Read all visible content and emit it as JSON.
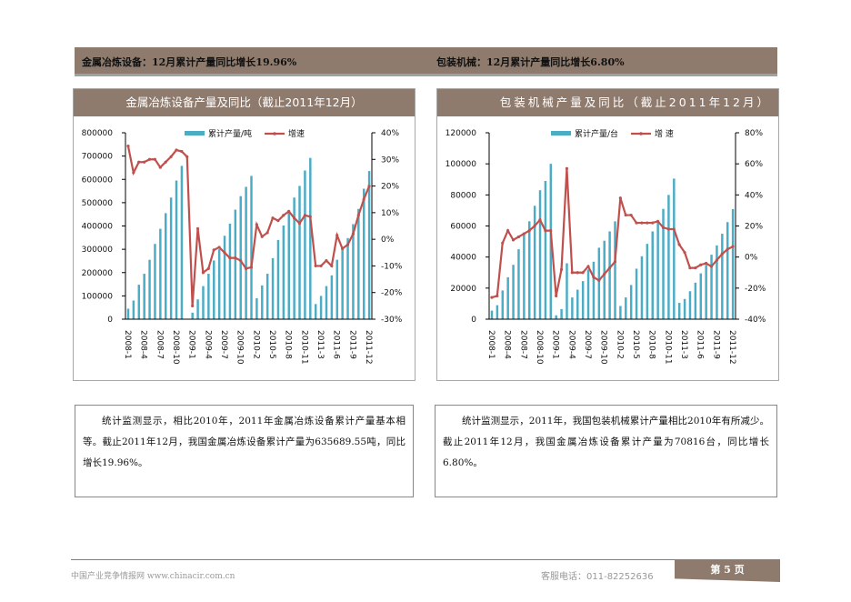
{
  "header": {
    "left": "金属冶炼设备：12月累计产量同比增长19.96%",
    "right": "包装机械：12月累计产量同比增长6.80%"
  },
  "colors": {
    "brand": "#8f7b6d",
    "bar": "#4bacc6",
    "line": "#c0504d"
  },
  "chart_data": [
    {
      "type": "bar+line",
      "title": "金属冶炼设备产量及同比（截止2011年12月）",
      "legend": [
        "累计产量/吨",
        "增速"
      ],
      "legend_position": "top",
      "categories": [
        "2008-1",
        "2008-2",
        "2008-3",
        "2008-4",
        "2008-5",
        "2008-6",
        "2008-7",
        "2008-8",
        "2008-9",
        "2008-10",
        "2008-11",
        "2008-12",
        "2009-1",
        "2009-2",
        "2009-3",
        "2009-4",
        "2009-5",
        "2009-6",
        "2009-7",
        "2009-8",
        "2009-9",
        "2009-10",
        "2009-11",
        "2009-12",
        "2010-2",
        "2010-3",
        "2010-4",
        "2010-5",
        "2010-6",
        "2010-7",
        "2010-8",
        "2010-9",
        "2010-10",
        "2010-11",
        "2010-12",
        "2011-2",
        "2011-3",
        "2011-4",
        "2011-5",
        "2011-6",
        "2011-7",
        "2011-8",
        "2011-9",
        "2011-10",
        "2011-11",
        "2011-12"
      ],
      "tick_labels": [
        "2008-1",
        "2008-4",
        "2008-7",
        "2008-10",
        "2009-1",
        "2009-4",
        "2009-7",
        "2009-10",
        "2010-2",
        "2010-5",
        "2010-8",
        "2010-11",
        "2011-3",
        "2011-6",
        "2011-9",
        "2011-12"
      ],
      "bars": [
        45000,
        80000,
        148000,
        195000,
        255000,
        323000,
        388000,
        455000,
        522000,
        595000,
        658000,
        null,
        28000,
        85000,
        142000,
        195000,
        252000,
        300000,
        358000,
        410000,
        470000,
        528000,
        568000,
        615000,
        90000,
        145000,
        195000,
        262000,
        340000,
        402000,
        460000,
        522000,
        572000,
        638000,
        692000,
        65000,
        100000,
        142000,
        188000,
        255000,
        300000,
        348000,
        408000,
        473000,
        560000,
        635690
      ],
      "growth": [
        35,
        25,
        29,
        29,
        30,
        30,
        27,
        29,
        31,
        33.5,
        33,
        31,
        -25,
        4,
        -12.5,
        -11,
        -4,
        -3,
        -5,
        -7,
        -7,
        -8,
        -11,
        -10.5,
        5.5,
        1,
        2.5,
        8,
        7,
        9,
        10.5,
        8,
        6,
        9,
        8.5,
        -10,
        -10,
        -8,
        -10,
        1.5,
        -3.5,
        -2,
        2,
        9,
        15,
        19.96
      ],
      "y_left": {
        "min": 0,
        "max": 800000,
        "step": 100000,
        "ticks": [
          "0",
          "100000",
          "200000",
          "300000",
          "400000",
          "500000",
          "600000",
          "700000",
          "800000"
        ]
      },
      "y_right": {
        "min": -30,
        "max": 40,
        "step": 10,
        "ticks": [
          "-30%",
          "-20%",
          "-10%",
          "0%",
          "10%",
          "20%",
          "30%",
          "40%"
        ]
      }
    },
    {
      "type": "bar+line",
      "title": "包装机械产量及同比（截止2011年12月）",
      "legend": [
        "累计产量/台",
        "增 速"
      ],
      "legend_position": "top",
      "categories": [
        "2008-1",
        "2008-2",
        "2008-3",
        "2008-4",
        "2008-5",
        "2008-6",
        "2008-7",
        "2008-8",
        "2008-9",
        "2008-10",
        "2008-11",
        "2008-12",
        "2009-1",
        "2009-2",
        "2009-3",
        "2009-4",
        "2009-5",
        "2009-6",
        "2009-7",
        "2009-8",
        "2009-9",
        "2009-10",
        "2009-11",
        "2009-12",
        "2010-2",
        "2010-3",
        "2010-4",
        "2010-5",
        "2010-6",
        "2010-7",
        "2010-8",
        "2010-9",
        "2010-10",
        "2010-11",
        "2010-12",
        "2011-2",
        "2011-3",
        "2011-4",
        "2011-5",
        "2011-6",
        "2011-7",
        "2011-8",
        "2011-9",
        "2011-10",
        "2011-11",
        "2011-12"
      ],
      "tick_labels": [
        "2008-1",
        "2008-4",
        "2008-7",
        "2008-10",
        "2009-1",
        "2009-4",
        "2009-7",
        "2009-10",
        "2010-2",
        "2010-5",
        "2010-8",
        "2010-11",
        "2011-3",
        "2011-6",
        "2011-9",
        "2011-12"
      ],
      "bars": [
        5500,
        9000,
        18500,
        27000,
        35000,
        45000,
        55000,
        63000,
        73000,
        83000,
        89000,
        100000,
        2500,
        6500,
        36000,
        14000,
        19000,
        24500,
        32000,
        37000,
        46000,
        50500,
        56500,
        63000,
        8500,
        14000,
        22000,
        32500,
        40500,
        48500,
        56500,
        63500,
        71000,
        80000,
        90500,
        10500,
        13000,
        18000,
        23500,
        29500,
        35000,
        41500,
        47500,
        55000,
        62500,
        70816
      ],
      "growth": [
        -26,
        -25,
        9,
        17,
        11,
        13,
        15,
        17,
        20,
        24,
        17,
        17,
        -25,
        -8,
        57,
        -10,
        -10,
        -10,
        -6,
        -13,
        -15,
        -11,
        -7,
        -3,
        38,
        27,
        27,
        22,
        22,
        22,
        22,
        23,
        19,
        18,
        18,
        8,
        3,
        -7,
        -7,
        -5,
        -4,
        -6,
        -2,
        2,
        5,
        6.8
      ],
      "y_left": {
        "min": 0,
        "max": 120000,
        "step": 20000,
        "ticks": [
          "0",
          "20000",
          "40000",
          "60000",
          "80000",
          "100000",
          "120000"
        ]
      },
      "y_right": {
        "min": -40,
        "max": 80,
        "step": 20,
        "ticks": [
          "-40%",
          "-20%",
          "0%",
          "20%",
          "40%",
          "60%",
          "80%"
        ]
      }
    }
  ],
  "text": {
    "left": "统计监测显示，相比2010年，2011年金属冶炼设备累计产量基本相等。截止2011年12月，我国金属冶炼设备累计产量为635689.55吨，同比增长19.96%。",
    "right": "统计监测显示，2011年，我国包装机械累计产量相比2010年有所减少。截止2011年12月，我国金属冶炼设备累计产量为70816台，同比增长6.80%。"
  },
  "footer": {
    "site": "中国产业竞争情报网 www.chinacir.com.cn",
    "phone": "客服电话：011-82252636",
    "page": "第 5 页"
  }
}
